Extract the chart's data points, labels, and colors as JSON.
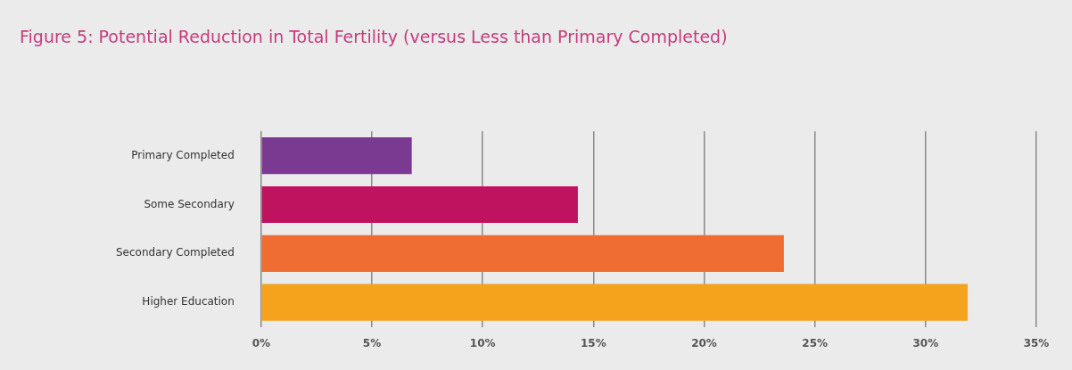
{
  "chart_data": {
    "type": "bar",
    "orientation": "horizontal",
    "title": "Figure 5: Potential Reduction in Total Fertility (versus Less than Primary Completed)",
    "categories": [
      "Primary Completed",
      "Some Secondary",
      "Secondary Completed",
      "Higher Education"
    ],
    "values": [
      6.8,
      14.3,
      23.6,
      31.9
    ],
    "colors": [
      "#7b3a91",
      "#c0135f",
      "#ef6c33",
      "#f5a21d"
    ],
    "xlim": [
      0,
      35
    ],
    "xticks": [
      {
        "value": 0,
        "label": "0%"
      },
      {
        "value": 5,
        "label": "5%"
      },
      {
        "value": 10,
        "label": "10%"
      },
      {
        "value": 15,
        "label": "15%"
      },
      {
        "value": 20,
        "label": "20%"
      },
      {
        "value": 25,
        "label": "25%"
      },
      {
        "value": 30,
        "label": "30%"
      },
      {
        "value": 35,
        "label": "35%"
      }
    ],
    "grid": "x",
    "legend": false
  }
}
